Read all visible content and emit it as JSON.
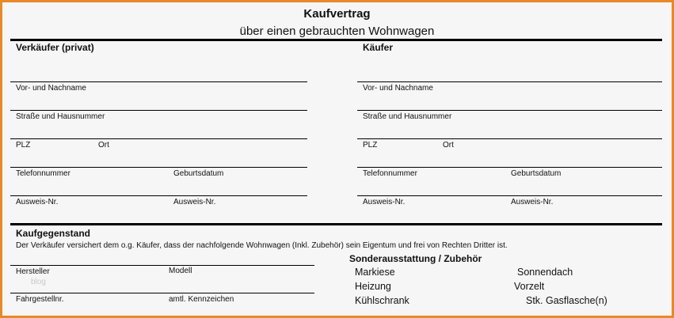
{
  "header": {
    "title": "Kaufvertrag",
    "subtitle": "über einen gebrauchten Wohnwagen"
  },
  "seller": {
    "heading": "Verkäufer (privat)",
    "fields": [
      "Vor- und Nachname",
      "Straße und Hausnummer",
      "PLZ",
      "Ort",
      "Telefonnummer",
      "Geburtsdatum",
      "Ausweis-Nr.",
      "Ausweis-Nr."
    ]
  },
  "buyer": {
    "heading": "Käufer",
    "fields": [
      "Vor- und Nachname",
      "Straße und Hausnummer",
      "PLZ",
      "Ort",
      "Telefonnummer",
      "Geburtsdatum",
      "Ausweis-Nr.",
      "Ausweis-Nr."
    ]
  },
  "object": {
    "heading": "Kaufgegenstand",
    "statement": "Der Verkäufer versichert dem o.g. Käufer, dass der nachfolgende Wohnwagen (Inkl. Zubehör) sein Eigentum und frei von Rechten Dritter ist.",
    "fields": [
      "Hersteller",
      "Modell",
      "Fahrgestellnr.",
      "amtl. Kennzeichen"
    ],
    "watermark": "blog"
  },
  "accessories": {
    "heading": "Sonderausstattung / Zubehör",
    "items": [
      "Markiese",
      "Sonnendach",
      "Heizung",
      "Vorzelt",
      "Kühlschrank",
      "Stk. Gasflasche(n)"
    ]
  },
  "colors": {
    "border": "#e8892a",
    "background": "#f6f6f6"
  }
}
